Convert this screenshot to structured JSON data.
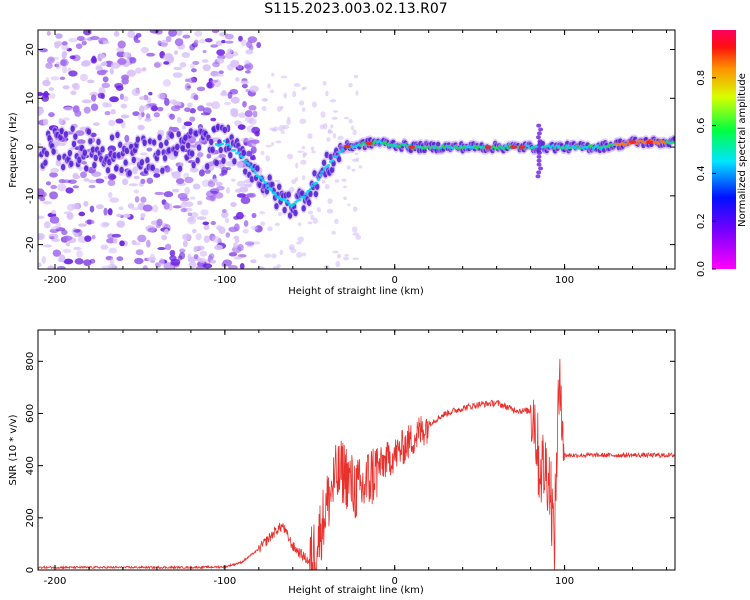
{
  "title": "S115.2023.003.02.13.R07",
  "colors": {
    "snr_line": "#e8302c",
    "spectral_core": "#5a1fd6",
    "frame": "#000000"
  },
  "chart_data": [
    {
      "type": "heatmap",
      "name": "spectrogram",
      "xlabel": "Height of straight line (km)",
      "ylabel": "Frequency (Hz)",
      "xlim": [
        -210,
        165
      ],
      "ylim": [
        -25,
        24
      ],
      "xticks": [
        -200,
        -100,
        0,
        100
      ],
      "yticks": [
        -20,
        -10,
        0,
        10,
        20
      ],
      "colorbar": {
        "label": "Normalized spectral amplitude",
        "range": [
          0,
          1
        ],
        "ticks": [
          0.0,
          0.2,
          0.4,
          0.6,
          0.8
        ],
        "colormap": "rainbow"
      },
      "ridge": [
        {
          "x": -205,
          "y": -1
        },
        {
          "x": -190,
          "y": 0
        },
        {
          "x": -170,
          "y": -1
        },
        {
          "x": -150,
          "y": -2
        },
        {
          "x": -130,
          "y": -1
        },
        {
          "x": -110,
          "y": 0
        },
        {
          "x": -100,
          "y": 1
        },
        {
          "x": -90,
          "y": -2
        },
        {
          "x": -80,
          "y": -6
        },
        {
          "x": -70,
          "y": -10
        },
        {
          "x": -60,
          "y": -12
        },
        {
          "x": -50,
          "y": -9
        },
        {
          "x": -40,
          "y": -4
        },
        {
          "x": -30,
          "y": 0
        },
        {
          "x": -10,
          "y": 1
        },
        {
          "x": 10,
          "y": 0
        },
        {
          "x": 40,
          "y": 0
        },
        {
          "x": 80,
          "y": 0
        },
        {
          "x": 90,
          "y": 0
        },
        {
          "x": 120,
          "y": 0
        },
        {
          "x": 140,
          "y": 1
        },
        {
          "x": 165,
          "y": 1
        }
      ]
    },
    {
      "type": "line",
      "name": "snr",
      "xlabel": "Height of straight line (km)",
      "ylabel": "SNR (10 * v/v)",
      "xlim": [
        -210,
        165
      ],
      "ylim": [
        0,
        920
      ],
      "xticks": [
        -200,
        -100,
        0,
        100
      ],
      "yticks": [
        0,
        200,
        400,
        600,
        800
      ],
      "series": [
        {
          "x": [
            -210,
            -180,
            -150,
            -120,
            -100,
            -90,
            -80,
            -70,
            -66,
            -60,
            -50,
            -45,
            -40,
            -35,
            -30,
            -25,
            -20,
            -15,
            -10,
            -5,
            0,
            10,
            20,
            30,
            40,
            50,
            60,
            70,
            75,
            80,
            82,
            85,
            90,
            92,
            94,
            96,
            98,
            100,
            110,
            120,
            130,
            140,
            150,
            160,
            165
          ],
          "values": [
            10,
            10,
            10,
            10,
            12,
            30,
            80,
            150,
            170,
            90,
            30,
            120,
            250,
            350,
            380,
            320,
            300,
            350,
            390,
            420,
            440,
            500,
            560,
            600,
            620,
            635,
            640,
            615,
            610,
            610,
            600,
            400,
            380,
            300,
            80,
            600,
            700,
            440,
            440,
            440,
            440,
            440,
            440,
            440,
            440
          ]
        }
      ]
    }
  ]
}
